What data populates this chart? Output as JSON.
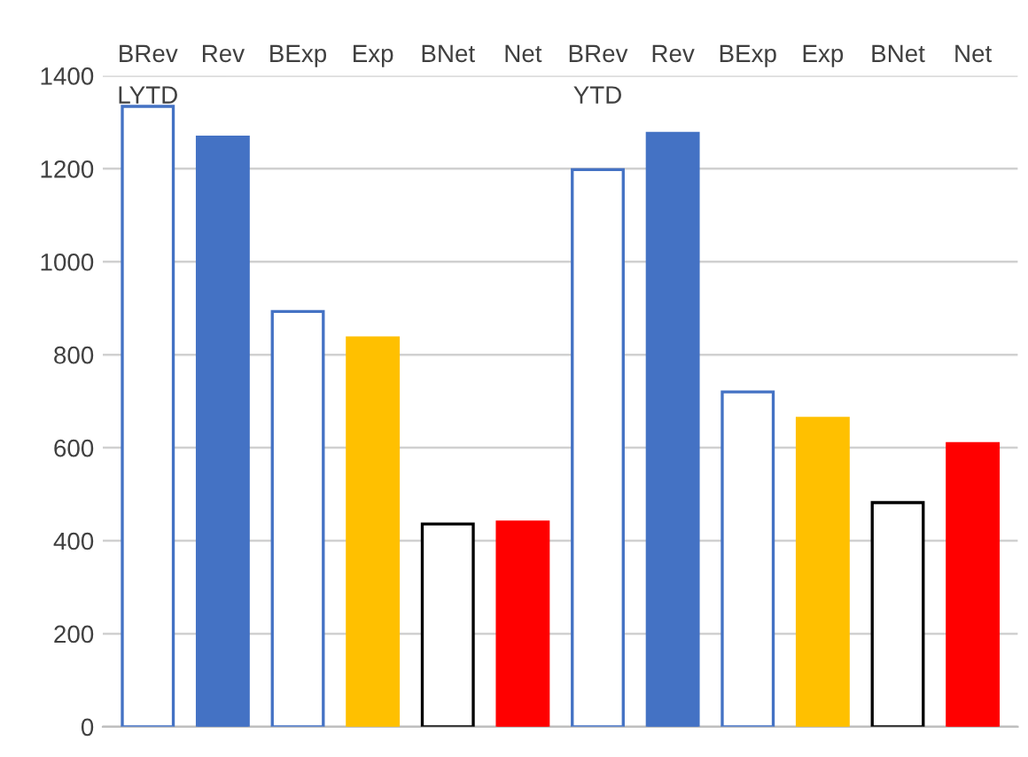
{
  "chart_data": {
    "type": "bar",
    "categories": [
      "BRev",
      "Rev",
      "BExp",
      "Exp",
      "BNet",
      "Net",
      "BRev",
      "Rev",
      "BExp",
      "Exp",
      "BNet",
      "Net"
    ],
    "series": [
      {
        "values": [
          1334,
          null,
          893,
          null,
          436,
          null,
          1198,
          null,
          720,
          null,
          482,
          null
        ],
        "colors": [
          "#4472c4",
          null,
          "#4472c4",
          null,
          "#000000",
          null,
          "#4472c4",
          null,
          "#4472c4",
          null,
          "#000000",
          null
        ]
      },
      {
        "values": [
          null,
          1268,
          null,
          836,
          null,
          440,
          null,
          1276,
          null,
          663,
          null,
          609
        ],
        "colors": [
          null,
          "#4472c4",
          null,
          "#ffc000",
          null,
          "#ff0000",
          null,
          "#4472c4",
          null,
          "#ffc000",
          null,
          "#ff0000"
        ]
      }
    ],
    "annotations": [
      "LYTD",
      "YTD"
    ],
    "ylim": [
      0,
      1400
    ],
    "yticks": [
      0,
      200,
      400,
      600,
      800,
      1000,
      1200,
      1400
    ],
    "grid": "y",
    "legend": false
  }
}
